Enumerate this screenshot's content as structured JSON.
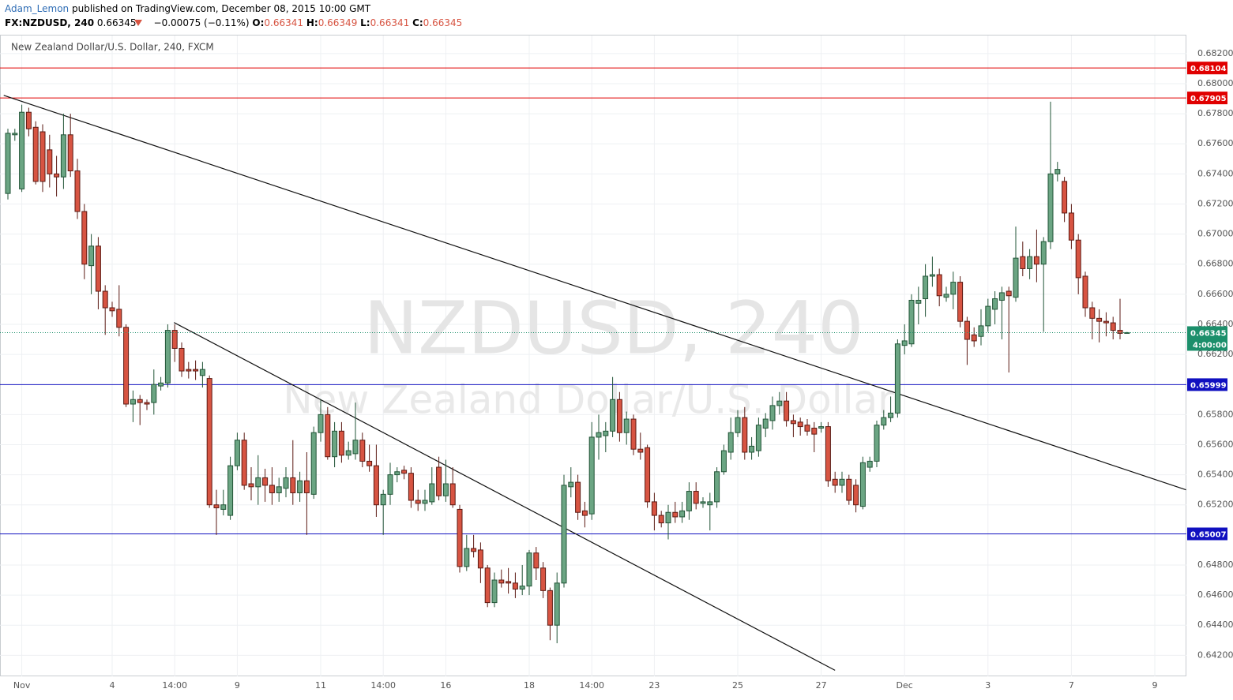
{
  "header": {
    "author": "Adam_Lemon",
    "published": "published on TradingView.com, December 08, 2015 10:00 GMT"
  },
  "chart_data": {
    "type": "candlestick",
    "symbol": "FX:NZDUSD, 240",
    "last": 0.66345,
    "change": "−0.00075 (−0.11%)",
    "ohlc_labels": [
      "O:",
      "H:",
      "L:",
      "C:"
    ],
    "ohlc_values": [
      0.66341,
      0.66349,
      0.66341,
      0.66345
    ],
    "legend": "New Zealand Dollar/U.S. Dollar, 240, FXCM",
    "watermark": [
      "NZDUSD, 240",
      "New Zealand Dollar/U.S. Dollar"
    ],
    "up_color": "#6ba583",
    "up_border": "#225437",
    "down_color": "#d75442",
    "down_border": "#5b1a13",
    "ylim": [
      0.6406,
      0.6832
    ],
    "yticks": [
      {
        "value": 0.682,
        "label": "0.68200"
      },
      {
        "value": 0.68,
        "label": "0.68000"
      },
      {
        "value": 0.678,
        "label": "0.67800"
      },
      {
        "value": 0.676,
        "label": "0.67600"
      },
      {
        "value": 0.674,
        "label": "0.67400"
      },
      {
        "value": 0.672,
        "label": "0.67200"
      },
      {
        "value": 0.67,
        "label": "0.67000"
      },
      {
        "value": 0.668,
        "label": "0.66800"
      },
      {
        "value": 0.666,
        "label": "0.66600"
      },
      {
        "value": 0.664,
        "label": "0.66400"
      },
      {
        "value": 0.662,
        "label": "0.66200"
      },
      {
        "value": 0.658,
        "label": "0.65800"
      },
      {
        "value": 0.656,
        "label": "0.65600"
      },
      {
        "value": 0.654,
        "label": "0.65400"
      },
      {
        "value": 0.652,
        "label": "0.65200"
      },
      {
        "value": 0.648,
        "label": "0.64800"
      },
      {
        "value": 0.646,
        "label": "0.64600"
      },
      {
        "value": 0.644,
        "label": "0.64400"
      },
      {
        "value": 0.642,
        "label": "0.64200"
      }
    ],
    "grid": true,
    "hlines": [
      {
        "value": 0.68104,
        "color": "#e00000"
      },
      {
        "value": 0.67905,
        "color": "#e00000"
      },
      {
        "value": 0.65999,
        "color": "#1010c0"
      },
      {
        "value": 0.65007,
        "color": "#1010c0"
      }
    ],
    "price_line": {
      "value": 0.66345,
      "countdown": "4:00:00",
      "color": "#1c8f6b"
    },
    "trendlines": [
      {
        "points": [
          [
            -0.6,
            0.67922
          ],
          [
            169.5,
            0.653
          ]
        ]
      },
      {
        "points": [
          [
            23.9,
            0.66412
          ],
          [
            119,
            0.641
          ]
        ]
      }
    ],
    "categories": [
      null,
      null,
      "Nov",
      null,
      null,
      null,
      null,
      null,
      null,
      null,
      null,
      null,
      null,
      null,
      null,
      "4",
      null,
      null,
      null,
      null,
      null,
      null,
      null,
      null,
      "14:00",
      null,
      null,
      null,
      null,
      null,
      null,
      null,
      null,
      "9",
      null,
      null,
      null,
      null,
      null,
      null,
      null,
      null,
      null,
      null,
      null,
      "11",
      null,
      null,
      null,
      null,
      null,
      null,
      null,
      null,
      "14:00",
      null,
      null,
      null,
      null,
      null,
      null,
      null,
      null,
      "16",
      null,
      null,
      null,
      null,
      null,
      null,
      null,
      null,
      null,
      null,
      null,
      "18",
      null,
      null,
      null,
      null,
      null,
      null,
      null,
      null,
      "14:00",
      null,
      null,
      null,
      null,
      null,
      null,
      null,
      null,
      "23",
      null,
      null,
      null,
      null,
      null,
      null,
      null,
      null,
      null,
      null,
      null,
      "25",
      null,
      null,
      null,
      null,
      null,
      null,
      null,
      null,
      null,
      null,
      null,
      "27",
      null,
      null,
      null,
      null,
      null,
      null,
      null,
      null,
      null,
      null,
      null,
      "Dec",
      null,
      null,
      null,
      null,
      null,
      null,
      null,
      null,
      null,
      null,
      null,
      "3",
      null,
      null,
      null,
      null,
      null,
      null,
      null,
      null,
      null,
      null,
      null,
      "7",
      null,
      null,
      null,
      null,
      null,
      null,
      null,
      null,
      null,
      null,
      null,
      "9"
    ],
    "candles": [
      [
        0.6727,
        0.677,
        0.6723,
        0.6767
      ],
      [
        0.6766,
        0.677,
        0.6762,
        0.6767
      ],
      [
        0.673,
        0.6786,
        0.6728,
        0.6781
      ],
      [
        0.6781,
        0.6784,
        0.6765,
        0.677
      ],
      [
        0.6771,
        0.6775,
        0.6733,
        0.6735
      ],
      [
        0.6768,
        0.6773,
        0.6728,
        0.6735
      ],
      [
        0.6756,
        0.6766,
        0.6731,
        0.674
      ],
      [
        0.674,
        0.6752,
        0.6725,
        0.6738
      ],
      [
        0.6738,
        0.678,
        0.673,
        0.6766
      ],
      [
        0.6766,
        0.678,
        0.6738,
        0.6742
      ],
      [
        0.6742,
        0.675,
        0.671,
        0.6715
      ],
      [
        0.6715,
        0.672,
        0.667,
        0.668
      ],
      [
        0.6679,
        0.67,
        0.666,
        0.6692
      ],
      [
        0.6692,
        0.6698,
        0.665,
        0.6662
      ],
      [
        0.6662,
        0.6666,
        0.6633,
        0.6651
      ],
      [
        0.6651,
        0.6655,
        0.6645,
        0.6649
      ],
      [
        0.665,
        0.6666,
        0.6632,
        0.6638
      ],
      [
        0.6638,
        0.664,
        0.6585,
        0.6587
      ],
      [
        0.6587,
        0.6596,
        0.6575,
        0.659
      ],
      [
        0.659,
        0.6593,
        0.6573,
        0.6588
      ],
      [
        0.6588,
        0.659,
        0.6583,
        0.6587
      ],
      [
        0.6588,
        0.661,
        0.658,
        0.66
      ],
      [
        0.6599,
        0.6605,
        0.6596,
        0.6601
      ],
      [
        0.6601,
        0.664,
        0.6598,
        0.6636
      ],
      [
        0.6636,
        0.664,
        0.6615,
        0.6624
      ],
      [
        0.6624,
        0.6628,
        0.6605,
        0.6609
      ],
      [
        0.661,
        0.6615,
        0.6604,
        0.6609
      ],
      [
        0.661,
        0.6616,
        0.6603,
        0.6609
      ],
      [
        0.6606,
        0.6615,
        0.6598,
        0.661
      ],
      [
        0.6604,
        0.6606,
        0.6518,
        0.652
      ],
      [
        0.652,
        0.653,
        0.65,
        0.6518
      ],
      [
        0.6517,
        0.653,
        0.6513,
        0.652
      ],
      [
        0.6513,
        0.6552,
        0.651,
        0.6546
      ],
      [
        0.6546,
        0.6568,
        0.6543,
        0.6563
      ],
      [
        0.6563,
        0.6568,
        0.653,
        0.6533
      ],
      [
        0.6534,
        0.6545,
        0.6523,
        0.6532
      ],
      [
        0.6532,
        0.6553,
        0.652,
        0.6538
      ],
      [
        0.6538,
        0.6544,
        0.6522,
        0.6533
      ],
      [
        0.6533,
        0.6545,
        0.652,
        0.6528
      ],
      [
        0.6528,
        0.6538,
        0.6522,
        0.6532
      ],
      [
        0.6531,
        0.6545,
        0.6525,
        0.6538
      ],
      [
        0.6538,
        0.6563,
        0.652,
        0.6528
      ],
      [
        0.6528,
        0.6542,
        0.6522,
        0.6536
      ],
      [
        0.6536,
        0.6555,
        0.65,
        0.6528
      ],
      [
        0.6527,
        0.6572,
        0.6524,
        0.6568
      ],
      [
        0.6568,
        0.659,
        0.6562,
        0.658
      ],
      [
        0.658,
        0.6585,
        0.655,
        0.6552
      ],
      [
        0.6552,
        0.6575,
        0.6545,
        0.6569
      ],
      [
        0.6569,
        0.6575,
        0.6548,
        0.6553
      ],
      [
        0.6553,
        0.6562,
        0.655,
        0.6556
      ],
      [
        0.6554,
        0.6588,
        0.655,
        0.6563
      ],
      [
        0.6563,
        0.6568,
        0.6545,
        0.6549
      ],
      [
        0.6549,
        0.656,
        0.6542,
        0.6546
      ],
      [
        0.6546,
        0.656,
        0.6512,
        0.652
      ],
      [
        0.652,
        0.653,
        0.65,
        0.6527
      ],
      [
        0.6527,
        0.6548,
        0.652,
        0.654
      ],
      [
        0.654,
        0.6545,
        0.6535,
        0.6542
      ],
      [
        0.6543,
        0.6546,
        0.6537,
        0.6541
      ],
      [
        0.6541,
        0.6545,
        0.6518,
        0.6523
      ],
      [
        0.6523,
        0.653,
        0.6516,
        0.6521
      ],
      [
        0.6521,
        0.653,
        0.6516,
        0.6523
      ],
      [
        0.6522,
        0.6545,
        0.652,
        0.6534
      ],
      [
        0.6545,
        0.6552,
        0.6523,
        0.6526
      ],
      [
        0.6526,
        0.655,
        0.6522,
        0.6534
      ],
      [
        0.6534,
        0.6545,
        0.6518,
        0.652
      ],
      [
        0.6517,
        0.652,
        0.6475,
        0.6479
      ],
      [
        0.6479,
        0.65,
        0.6476,
        0.6491
      ],
      [
        0.6491,
        0.65,
        0.6485,
        0.6489
      ],
      [
        0.649,
        0.6495,
        0.6468,
        0.6478
      ],
      [
        0.6478,
        0.648,
        0.6452,
        0.6455
      ],
      [
        0.6455,
        0.6475,
        0.6452,
        0.647
      ],
      [
        0.647,
        0.6477,
        0.6465,
        0.6468
      ],
      [
        0.6469,
        0.6478,
        0.6461,
        0.6468
      ],
      [
        0.6468,
        0.6475,
        0.6458,
        0.6464
      ],
      [
        0.6464,
        0.648,
        0.646,
        0.6466
      ],
      [
        0.6466,
        0.649,
        0.646,
        0.6488
      ],
      [
        0.6488,
        0.6492,
        0.647,
        0.6478
      ],
      [
        0.6478,
        0.6482,
        0.6458,
        0.6463
      ],
      [
        0.6463,
        0.6465,
        0.643,
        0.644
      ],
      [
        0.644,
        0.6475,
        0.6428,
        0.6468
      ],
      [
        0.6468,
        0.654,
        0.6465,
        0.6533
      ],
      [
        0.6532,
        0.6545,
        0.6525,
        0.6535
      ],
      [
        0.6535,
        0.654,
        0.651,
        0.6515
      ],
      [
        0.6516,
        0.6522,
        0.6505,
        0.6513
      ],
      [
        0.6514,
        0.6575,
        0.651,
        0.6565
      ],
      [
        0.6565,
        0.658,
        0.655,
        0.6568
      ],
      [
        0.6566,
        0.6575,
        0.6555,
        0.6569
      ],
      [
        0.6569,
        0.6605,
        0.6565,
        0.659
      ],
      [
        0.659,
        0.6595,
        0.6562,
        0.6568
      ],
      [
        0.6568,
        0.6582,
        0.656,
        0.6577
      ],
      [
        0.6577,
        0.658,
        0.6553,
        0.6557
      ],
      [
        0.6557,
        0.6568,
        0.655,
        0.6555
      ],
      [
        0.6558,
        0.656,
        0.6518,
        0.6522
      ],
      [
        0.6522,
        0.6528,
        0.6503,
        0.6513
      ],
      [
        0.6513,
        0.6516,
        0.6505,
        0.6508
      ],
      [
        0.6508,
        0.652,
        0.6497,
        0.6515
      ],
      [
        0.6515,
        0.6522,
        0.6508,
        0.6512
      ],
      [
        0.6512,
        0.6522,
        0.6508,
        0.6516
      ],
      [
        0.6516,
        0.6535,
        0.651,
        0.6529
      ],
      [
        0.6529,
        0.6535,
        0.6517,
        0.6521
      ],
      [
        0.6521,
        0.6525,
        0.6518,
        0.6522
      ],
      [
        0.652,
        0.6528,
        0.6503,
        0.6522
      ],
      [
        0.6522,
        0.6545,
        0.6518,
        0.6542
      ],
      [
        0.6542,
        0.656,
        0.654,
        0.6556
      ],
      [
        0.6555,
        0.6578,
        0.655,
        0.6568
      ],
      [
        0.6568,
        0.6583,
        0.6565,
        0.6578
      ],
      [
        0.6578,
        0.6585,
        0.655,
        0.6555
      ],
      [
        0.6555,
        0.6565,
        0.655,
        0.6559
      ],
      [
        0.6556,
        0.6578,
        0.6552,
        0.6573
      ],
      [
        0.6571,
        0.6581,
        0.6565,
        0.6577
      ],
      [
        0.6576,
        0.6592,
        0.657,
        0.6586
      ],
      [
        0.6586,
        0.6595,
        0.658,
        0.6589
      ],
      [
        0.6589,
        0.6595,
        0.6572,
        0.6576
      ],
      [
        0.6576,
        0.658,
        0.6565,
        0.6574
      ],
      [
        0.6575,
        0.6578,
        0.6566,
        0.6572
      ],
      [
        0.6573,
        0.6577,
        0.6566,
        0.6569
      ],
      [
        0.6571,
        0.6575,
        0.6555,
        0.6567
      ],
      [
        0.6571,
        0.6575,
        0.6568,
        0.6572
      ],
      [
        0.6572,
        0.6575,
        0.6532,
        0.6536
      ],
      [
        0.6537,
        0.6542,
        0.6528,
        0.6533
      ],
      [
        0.6533,
        0.6542,
        0.6528,
        0.6537
      ],
      [
        0.6537,
        0.654,
        0.652,
        0.6523
      ],
      [
        0.6533,
        0.6537,
        0.6515,
        0.652
      ],
      [
        0.6519,
        0.6552,
        0.6517,
        0.6548
      ],
      [
        0.6545,
        0.6552,
        0.6542,
        0.6549
      ],
      [
        0.6549,
        0.6576,
        0.6545,
        0.6573
      ],
      [
        0.6573,
        0.6583,
        0.657,
        0.6578
      ],
      [
        0.6578,
        0.6592,
        0.6575,
        0.6581
      ],
      [
        0.6581,
        0.663,
        0.6578,
        0.6627
      ],
      [
        0.6626,
        0.664,
        0.662,
        0.6629
      ],
      [
        0.6627,
        0.666,
        0.6625,
        0.6656
      ],
      [
        0.6654,
        0.6665,
        0.664,
        0.6656
      ],
      [
        0.6657,
        0.668,
        0.6645,
        0.6672
      ],
      [
        0.6672,
        0.6685,
        0.6665,
        0.6673
      ],
      [
        0.6673,
        0.6677,
        0.6652,
        0.6659
      ],
      [
        0.6658,
        0.6665,
        0.6655,
        0.666
      ],
      [
        0.666,
        0.6675,
        0.665,
        0.6668
      ],
      [
        0.6668,
        0.6672,
        0.6638,
        0.6642
      ],
      [
        0.6642,
        0.6645,
        0.6613,
        0.663
      ],
      [
        0.6633,
        0.6638,
        0.6625,
        0.6629
      ],
      [
        0.6632,
        0.665,
        0.6626,
        0.6639
      ],
      [
        0.6639,
        0.6657,
        0.6635,
        0.6652
      ],
      [
        0.665,
        0.6662,
        0.664,
        0.6657
      ],
      [
        0.6656,
        0.6665,
        0.663,
        0.6661
      ],
      [
        0.6662,
        0.6665,
        0.6608,
        0.6659
      ],
      [
        0.6658,
        0.6705,
        0.6655,
        0.6684
      ],
      [
        0.6685,
        0.6695,
        0.6672,
        0.6677
      ],
      [
        0.6677,
        0.669,
        0.667,
        0.6685
      ],
      [
        0.6685,
        0.6703,
        0.6668,
        0.668
      ],
      [
        0.668,
        0.6698,
        0.6635,
        0.6695
      ],
      [
        0.6695,
        0.6788,
        0.669,
        0.674
      ],
      [
        0.674,
        0.6748,
        0.6735,
        0.6743
      ],
      [
        0.6735,
        0.6738,
        0.6708,
        0.6714
      ],
      [
        0.6714,
        0.672,
        0.669,
        0.6696
      ],
      [
        0.6696,
        0.67,
        0.666,
        0.6671
      ],
      [
        0.6672,
        0.6675,
        0.6645,
        0.6651
      ],
      [
        0.6651,
        0.6655,
        0.663,
        0.6644
      ],
      [
        0.6644,
        0.665,
        0.6628,
        0.6642
      ],
      [
        0.6642,
        0.6648,
        0.6632,
        0.6641
      ],
      [
        0.6641,
        0.6645,
        0.663,
        0.6636
      ],
      [
        0.6636,
        0.6657,
        0.663,
        0.6634
      ],
      [
        0.66341,
        0.66349,
        0.66341,
        0.66345
      ],
      null,
      null,
      null,
      null
    ]
  }
}
